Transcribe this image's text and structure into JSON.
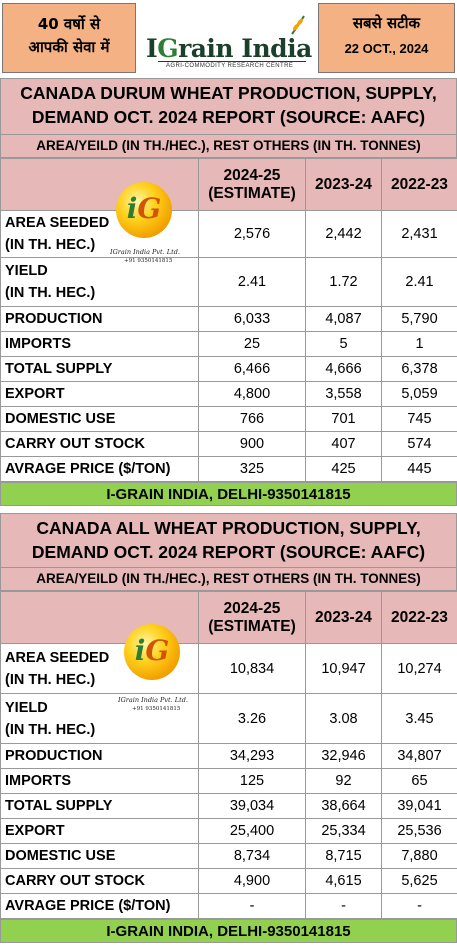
{
  "header": {
    "left_line1": "40 वर्षो से",
    "left_line2": "आपकी सेवा में",
    "brand": {
      "prefix": "I",
      "initial": "G",
      "rest": "rain India"
    },
    "tagline": "AGRI-COMMODITY RESEARCH CENTRE",
    "right_line1": "सबसे सटीक",
    "right_date": "22 OCT., 2024",
    "colors": {
      "header_box": "#f4b183",
      "title_bg": "#e6b8b7",
      "footer_bg": "#92d050"
    }
  },
  "watermark": {
    "initials": {
      "first": "i",
      "second": "G"
    },
    "company": "IGrain India Pvt. Ltd.",
    "phone": "+91 9350141815"
  },
  "columns": {
    "c1_line1": "2024-25",
    "c1_line2": "(ESTIMATE)",
    "c2": "2023-24",
    "c3": "2022-23"
  },
  "durum": {
    "title_line1": "CANADA DURUM WHEAT PRODUCTION, SUPPLY,",
    "title_line2": "DEMAND OCT. 2024 REPORT (SOURCE: AAFC)",
    "units": "AREA/YEILD (IN TH./HEC.), REST OTHERS (IN TH. TONNES)",
    "rows": [
      {
        "label1": "AREA SEEDED",
        "label2": "(IN TH. HEC.)",
        "v1": "2,576",
        "v2": "2,442",
        "v3": "2,431"
      },
      {
        "label1": "YIELD",
        "label2": "(IN TH. HEC.)",
        "v1": "2.41",
        "v2": "1.72",
        "v3": "2.41"
      },
      {
        "label1": "PRODUCTION",
        "v1": "6,033",
        "v2": "4,087",
        "v3": "5,790"
      },
      {
        "label1": "IMPORTS",
        "v1": "25",
        "v2": "5",
        "v3": "1"
      },
      {
        "label1": "TOTAL SUPPLY",
        "v1": "6,466",
        "v2": "4,666",
        "v3": "6,378"
      },
      {
        "label1": "EXPORT",
        "v1": "4,800",
        "v2": "3,558",
        "v3": "5,059"
      },
      {
        "label1": "DOMESTIC USE",
        "v1": "766",
        "v2": "701",
        "v3": "745"
      },
      {
        "label1": "CARRY OUT STOCK",
        "v1": "900",
        "v2": "407",
        "v3": "574"
      },
      {
        "label1": "AVRAGE PRICE ($/TON)",
        "v1": "325",
        "v2": "425",
        "v3": "445"
      }
    ],
    "footer": "I-GRAIN INDIA, DELHI-9350141815"
  },
  "allwheat": {
    "title_line1": "CANADA ALL WHEAT PRODUCTION, SUPPLY,",
    "title_line2": "DEMAND OCT. 2024 REPORT (SOURCE: AAFC)",
    "units": "AREA/YEILD (IN TH./HEC.), REST OTHERS (IN TH. TONNES)",
    "rows": [
      {
        "label1": "AREA SEEDED",
        "label2": "(IN TH. HEC.)",
        "v1": "10,834",
        "v2": "10,947",
        "v3": "10,274"
      },
      {
        "label1": "YIELD",
        "label2": "(IN TH. HEC.)",
        "v1": "3.26",
        "v2": "3.08",
        "v3": "3.45"
      },
      {
        "label1": "PRODUCTION",
        "v1": "34,293",
        "v2": "32,946",
        "v3": "34,807"
      },
      {
        "label1": "IMPORTS",
        "v1": "125",
        "v2": "92",
        "v3": "65"
      },
      {
        "label1": "TOTAL SUPPLY",
        "v1": "39,034",
        "v2": "38,664",
        "v3": "39,041"
      },
      {
        "label1": "EXPORT",
        "v1": "25,400",
        "v2": "25,334",
        "v3": "25,536"
      },
      {
        "label1": "DOMESTIC USE",
        "v1": "8,734",
        "v2": "8,715",
        "v3": "7,880"
      },
      {
        "label1": "CARRY OUT STOCK",
        "v1": "4,900",
        "v2": "4,615",
        "v3": "5,625"
      },
      {
        "label1": "AVRAGE PRICE ($/TON)",
        "v1": "-",
        "v2": "-",
        "v3": "-"
      }
    ],
    "footer": "I-GRAIN INDIA, DELHI-9350141815"
  }
}
